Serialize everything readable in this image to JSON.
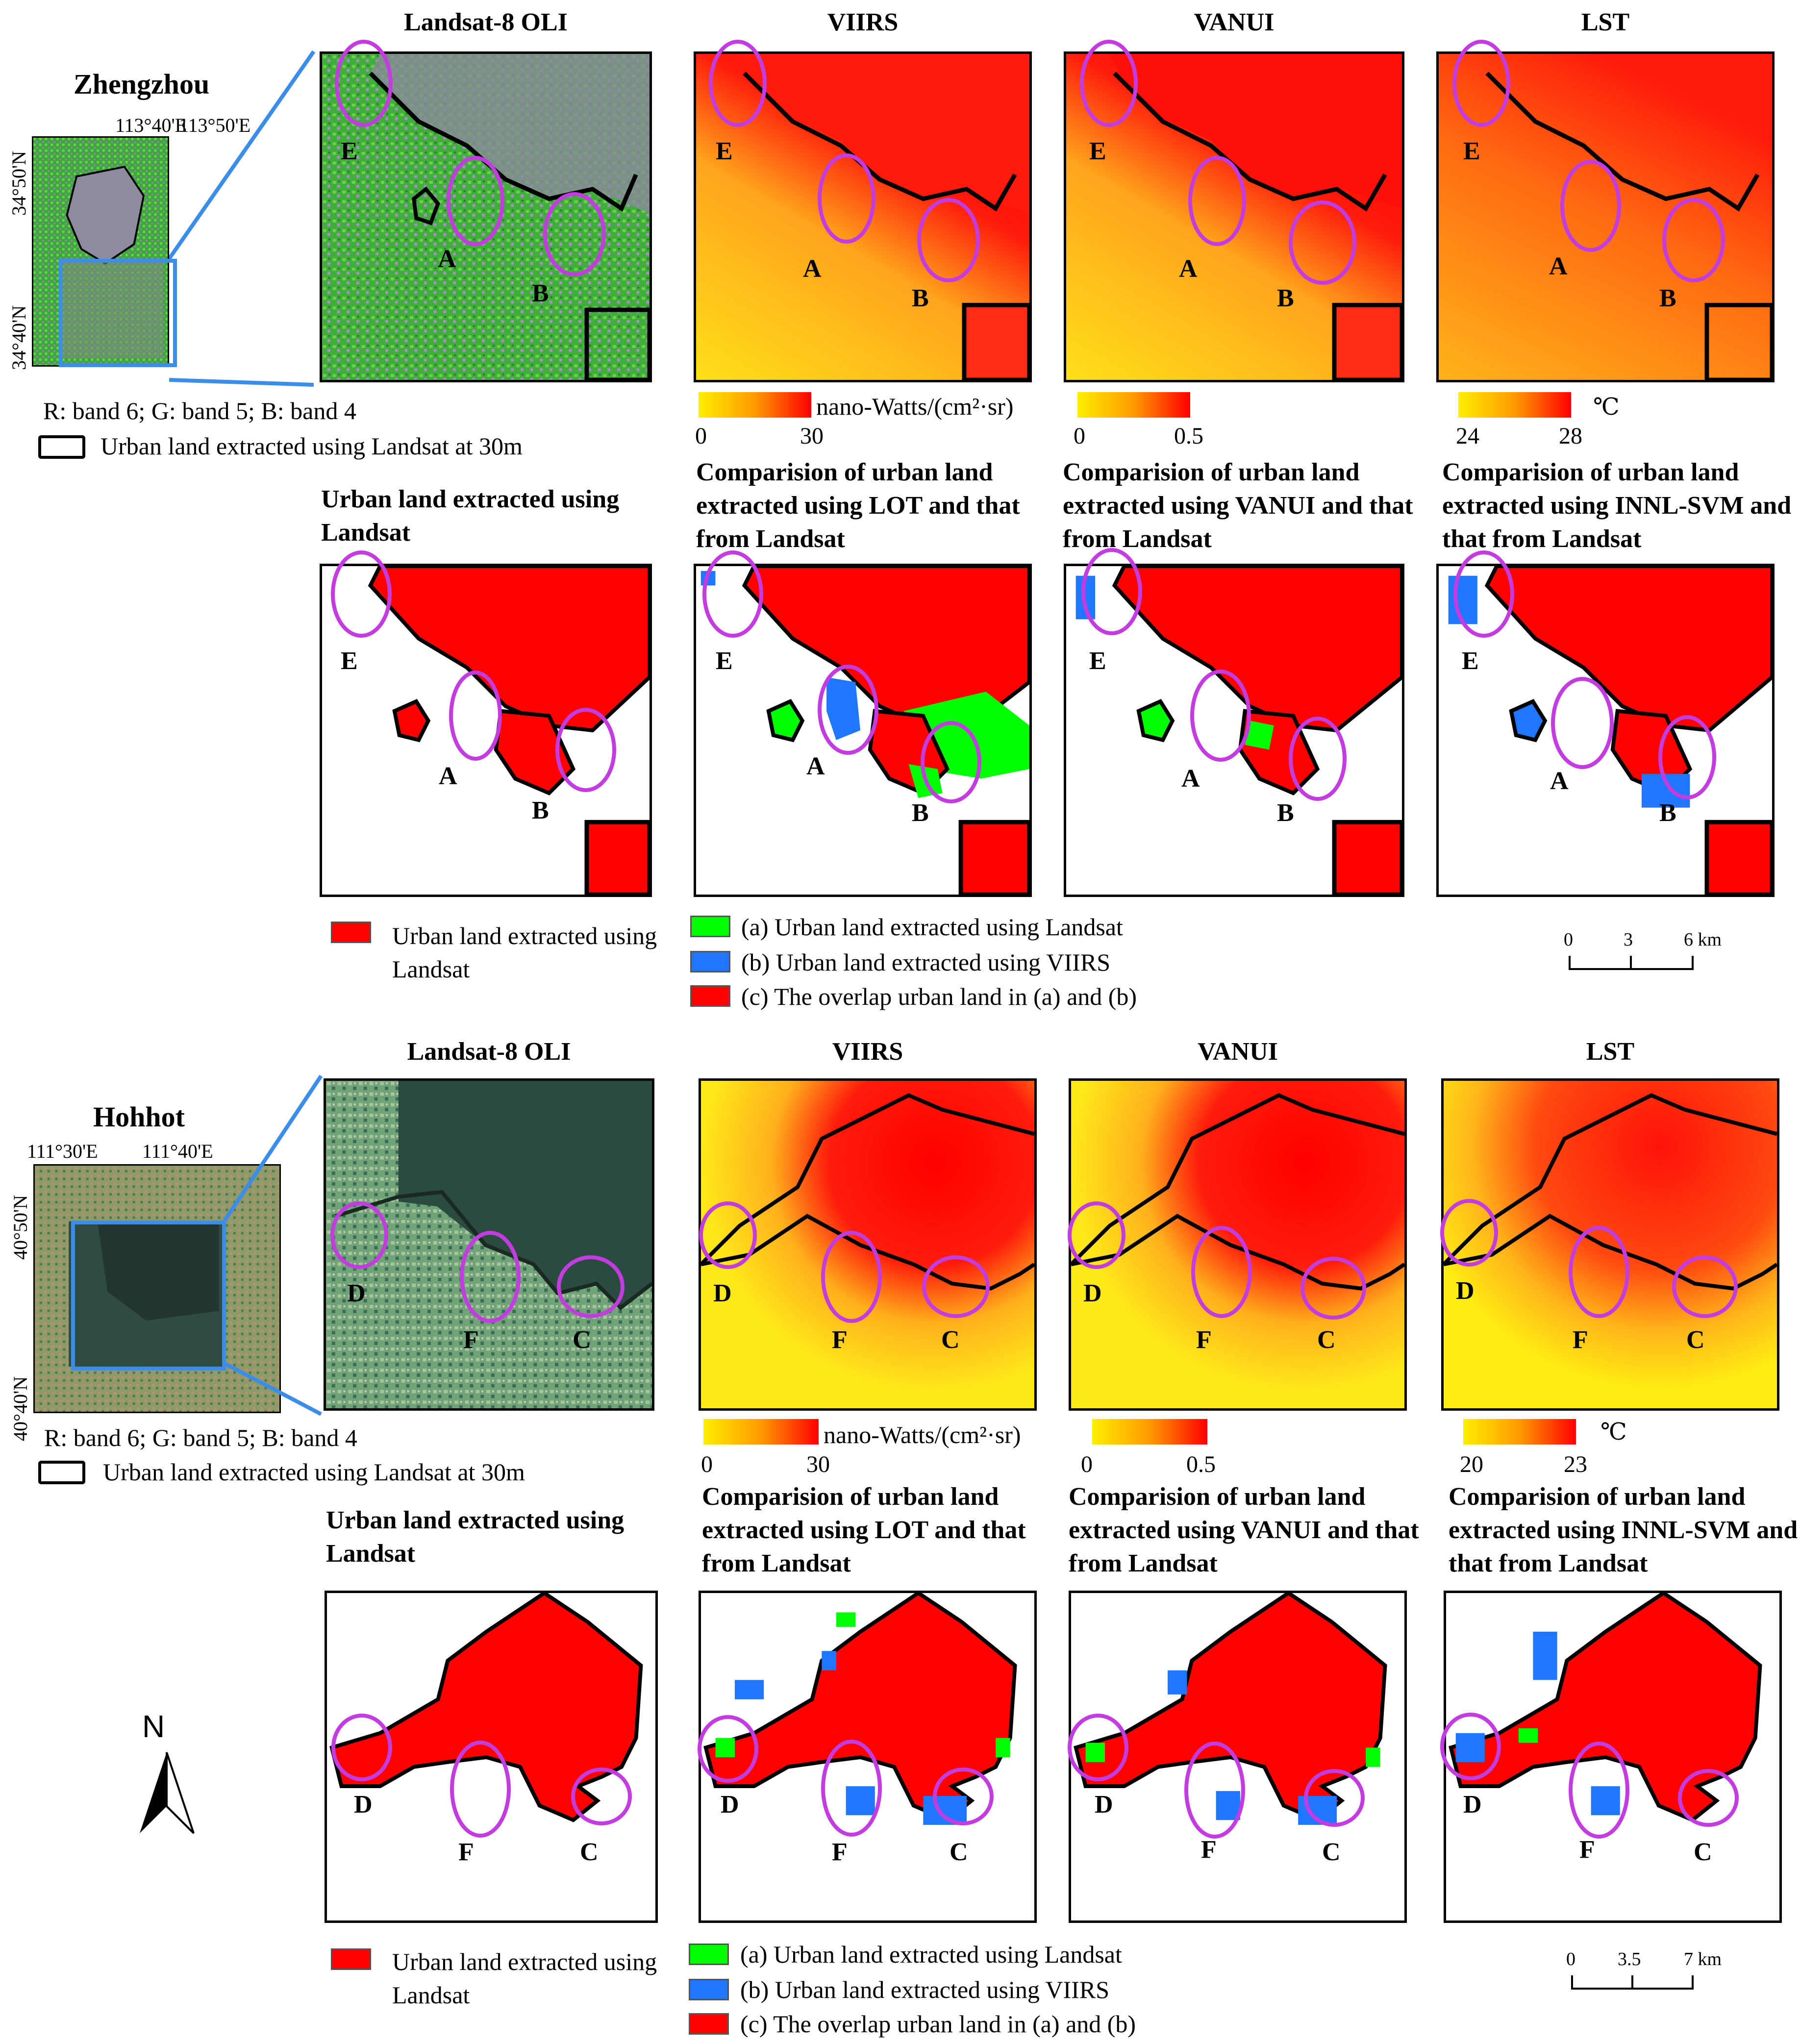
{
  "zhengzhou": {
    "city": "Zhengzhou",
    "lon_ticks": [
      "113°40'E",
      "113°50'E"
    ],
    "lat_ticks": [
      "34°50'N",
      "34°40'N"
    ],
    "band_note": "R: band 6; G: band 5; B: band 4",
    "outline_legend": "Urban land extracted using Landsat at 30m",
    "top_titles": [
      "Landsat-8 OLI",
      "VIIRS",
      "VANUI",
      "LST"
    ],
    "markers": [
      "E",
      "A",
      "B"
    ],
    "colorbars": [
      {
        "min": "0",
        "max": "30",
        "unit": "nano-Watts/(cm²·sr)"
      },
      {
        "min": "0",
        "max": "0.5",
        "unit": ""
      },
      {
        "min": "24",
        "max": "28",
        "unit": "℃"
      }
    ],
    "bottom_titles": [
      "Urban land extracted using Landsat",
      "Comparision of urban land extracted using LOT and that from Landsat",
      "Comparision of urban land extracted using VANUI and that from Landsat",
      "Comparision of urban land extracted using INNL-SVM and that from Landsat"
    ],
    "scale": {
      "ticks": [
        "0",
        "3",
        "6 km"
      ]
    }
  },
  "hohhot": {
    "city": "Hohhot",
    "lon_ticks": [
      "111°30'E",
      "111°40'E"
    ],
    "lat_ticks": [
      "40°50'N",
      "40°40'N"
    ],
    "band_note": "R: band 6; G: band 5; B: band 4",
    "outline_legend": "Urban land extracted using Landsat at 30m",
    "top_titles": [
      "Landsat-8 OLI",
      "VIIRS",
      "VANUI",
      "LST"
    ],
    "markers": [
      "D",
      "F",
      "C"
    ],
    "colorbars": [
      {
        "min": "0",
        "max": "30",
        "unit": "nano-Watts/(cm²·sr)"
      },
      {
        "min": "0",
        "max": "0.5",
        "unit": ""
      },
      {
        "min": "20",
        "max": "23",
        "unit": "℃"
      }
    ],
    "bottom_titles": [
      "Urban land extracted using Landsat",
      "Comparision of urban land extracted using LOT and that from Landsat",
      "Comparision of urban land extracted using VANUI and that from Landsat",
      "Comparision of urban land extracted using INNL-SVM and that from Landsat"
    ],
    "scale": {
      "ticks": [
        "0",
        "3.5",
        "7 km"
      ]
    }
  },
  "legend": {
    "single": "Urban land extracted using Landsat",
    "a": "(a) Urban land extracted using Landsat",
    "b": "(b) Urban land extracted using VIIRS",
    "c": "(c) The overlap urban land in (a) and (b)"
  },
  "north_arrow": "N",
  "colors": {
    "urban_red": "#ff0000",
    "landsat_green": "#00ff00",
    "viirs_blue": "#1f77ff",
    "marker_purple": "#c23ce0",
    "low_yellow": "#ffee00",
    "high_red": "#ff0000"
  }
}
